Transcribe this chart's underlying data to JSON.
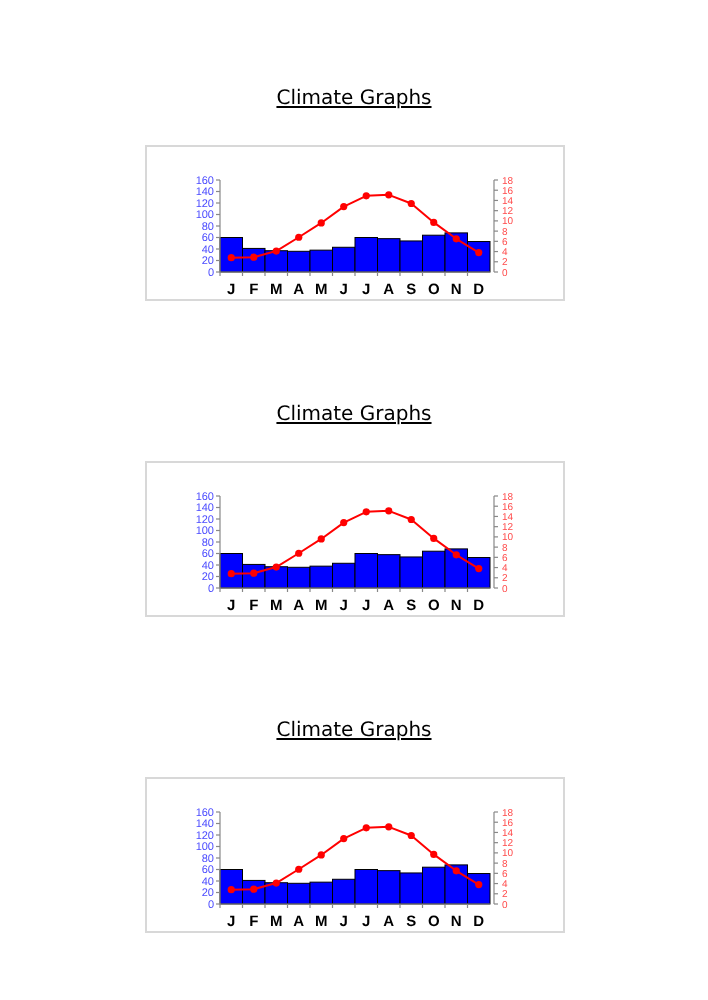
{
  "chart_data": [
    {
      "type": "bar",
      "title": "Climate Graphs",
      "categories": [
        "J",
        "F",
        "M",
        "A",
        "M",
        "J",
        "J",
        "A",
        "S",
        "O",
        "N",
        "D"
      ],
      "series": [
        {
          "color": "#0000ff",
          "values": [
            60,
            41,
            37,
            36,
            38,
            43,
            60,
            58,
            54,
            64,
            68,
            53
          ]
        },
        {
          "type": "line",
          "axis": "y2",
          "color": "#ff0000",
          "marker": "circle",
          "values": [
            2.8,
            2.9,
            4.1,
            6.8,
            9.6,
            12.8,
            14.9,
            15.1,
            13.4,
            9.7,
            6.5,
            3.8
          ]
        }
      ],
      "ylim": [
        0,
        160
      ],
      "yticks": [
        0,
        20,
        40,
        60,
        80,
        100,
        120,
        140,
        160
      ],
      "y2lim": [
        0,
        18
      ],
      "y2ticks": [
        0,
        2,
        4,
        6,
        8,
        10,
        12,
        14,
        16,
        18
      ],
      "grid": false
    },
    {
      "type": "bar",
      "title": "Climate Graphs",
      "categories": [
        "J",
        "F",
        "M",
        "A",
        "M",
        "J",
        "J",
        "A",
        "S",
        "O",
        "N",
        "D"
      ],
      "series": [
        {
          "color": "#0000ff",
          "values": [
            60,
            41,
            37,
            36,
            38,
            43,
            60,
            58,
            54,
            64,
            68,
            53
          ]
        },
        {
          "type": "line",
          "axis": "y2",
          "color": "#ff0000",
          "marker": "circle",
          "values": [
            2.8,
            2.9,
            4.1,
            6.8,
            9.6,
            12.8,
            14.9,
            15.1,
            13.4,
            9.7,
            6.5,
            3.8
          ]
        }
      ],
      "ylim": [
        0,
        160
      ],
      "yticks": [
        0,
        20,
        40,
        60,
        80,
        100,
        120,
        140,
        160
      ],
      "y2lim": [
        0,
        18
      ],
      "y2ticks": [
        0,
        2,
        4,
        6,
        8,
        10,
        12,
        14,
        16,
        18
      ],
      "grid": false
    },
    {
      "type": "bar",
      "title": "Climate Graphs",
      "categories": [
        "J",
        "F",
        "M",
        "A",
        "M",
        "J",
        "J",
        "A",
        "S",
        "O",
        "N",
        "D"
      ],
      "series": [
        {
          "color": "#0000ff",
          "values": [
            60,
            41,
            37,
            36,
            38,
            43,
            60,
            58,
            54,
            64,
            68,
            53
          ]
        },
        {
          "type": "line",
          "axis": "y2",
          "color": "#ff0000",
          "marker": "circle",
          "values": [
            2.8,
            2.9,
            4.1,
            6.8,
            9.6,
            12.8,
            14.9,
            15.1,
            13.4,
            9.7,
            6.5,
            3.8
          ]
        }
      ],
      "ylim": [
        0,
        160
      ],
      "yticks": [
        0,
        20,
        40,
        60,
        80,
        100,
        120,
        140,
        160
      ],
      "y2lim": [
        0,
        18
      ],
      "y2ticks": [
        0,
        2,
        4,
        6,
        8,
        10,
        12,
        14,
        16,
        18
      ],
      "grid": false
    }
  ]
}
